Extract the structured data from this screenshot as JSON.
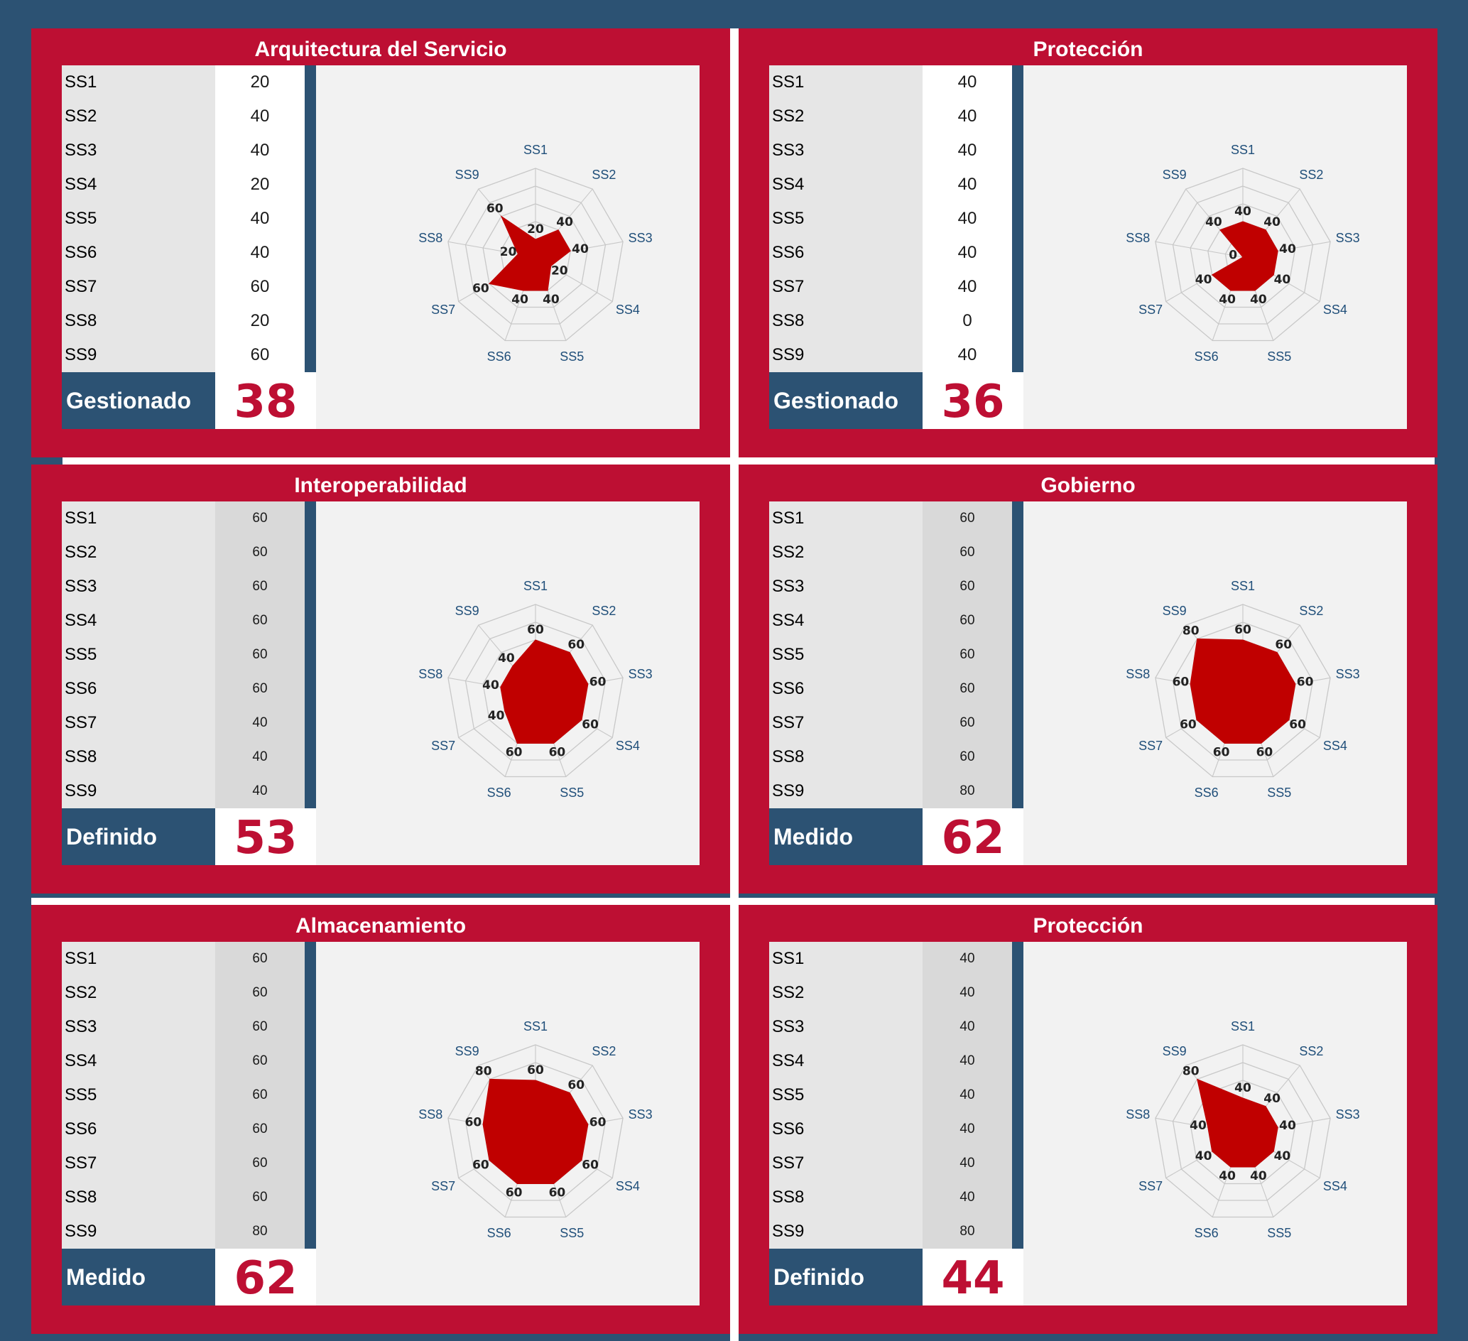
{
  "colors": {
    "background": "#2c5273",
    "panel": "#bd0f33",
    "radar_fill": "#c00000",
    "grid": "#c8c8c8",
    "axis_label": "#1f4e79",
    "score": "#bd0f33"
  },
  "panels": [
    {
      "title": "Arquitectura del Servicio",
      "rows": [
        {
          "label": "SS1",
          "value": "20"
        },
        {
          "label": "SS2",
          "value": "40"
        },
        {
          "label": "SS3",
          "value": "40"
        },
        {
          "label": "SS4",
          "value": "20"
        },
        {
          "label": "SS5",
          "value": "40"
        },
        {
          "label": "SS6",
          "value": "40"
        },
        {
          "label": "SS7",
          "value": "60"
        },
        {
          "label": "SS8",
          "value": "20"
        },
        {
          "label": "SS9",
          "value": "60"
        }
      ],
      "level": "Gestionado",
      "score": "38",
      "value_style": "white"
    },
    {
      "title": "Protección",
      "rows": [
        {
          "label": "SS1",
          "value": "40"
        },
        {
          "label": "SS2",
          "value": "40"
        },
        {
          "label": "SS3",
          "value": "40"
        },
        {
          "label": "SS4",
          "value": "40"
        },
        {
          "label": "SS5",
          "value": "40"
        },
        {
          "label": "SS6",
          "value": "40"
        },
        {
          "label": "SS7",
          "value": "40"
        },
        {
          "label": "SS8",
          "value": "0"
        },
        {
          "label": "SS9",
          "value": "40"
        }
      ],
      "level": "Gestionado",
      "score": "36",
      "value_style": "white"
    },
    {
      "title": "Interoperabilidad",
      "rows": [
        {
          "label": "SS1",
          "value": "60"
        },
        {
          "label": "SS2",
          "value": "60"
        },
        {
          "label": "SS3",
          "value": "60"
        },
        {
          "label": "SS4",
          "value": "60"
        },
        {
          "label": "SS5",
          "value": "60"
        },
        {
          "label": "SS6",
          "value": "60"
        },
        {
          "label": "SS7",
          "value": "40"
        },
        {
          "label": "SS8",
          "value": "40"
        },
        {
          "label": "SS9",
          "value": "40"
        }
      ],
      "level": "Definido",
      "score": "53",
      "value_style": "grey"
    },
    {
      "title": "Gobierno",
      "rows": [
        {
          "label": "SS1",
          "value": "60"
        },
        {
          "label": "SS2",
          "value": "60"
        },
        {
          "label": "SS3",
          "value": "60"
        },
        {
          "label": "SS4",
          "value": "60"
        },
        {
          "label": "SS5",
          "value": "60"
        },
        {
          "label": "SS6",
          "value": "60"
        },
        {
          "label": "SS7",
          "value": "60"
        },
        {
          "label": "SS8",
          "value": "60"
        },
        {
          "label": "SS9",
          "value": "80"
        }
      ],
      "level": "Medido",
      "score": "62",
      "value_style": "grey"
    },
    {
      "title": "Almacenamiento",
      "rows": [
        {
          "label": "SS1",
          "value": "60"
        },
        {
          "label": "SS2",
          "value": "60"
        },
        {
          "label": "SS3",
          "value": "60"
        },
        {
          "label": "SS4",
          "value": "60"
        },
        {
          "label": "SS5",
          "value": "60"
        },
        {
          "label": "SS6",
          "value": "60"
        },
        {
          "label": "SS7",
          "value": "60"
        },
        {
          "label": "SS8",
          "value": "60"
        },
        {
          "label": "SS9",
          "value": "80"
        }
      ],
      "level": "Medido",
      "score": "62",
      "value_style": "grey"
    },
    {
      "title": "Protección",
      "rows": [
        {
          "label": "SS1",
          "value": "40"
        },
        {
          "label": "SS2",
          "value": "40"
        },
        {
          "label": "SS3",
          "value": "40"
        },
        {
          "label": "SS4",
          "value": "40"
        },
        {
          "label": "SS5",
          "value": "40"
        },
        {
          "label": "SS6",
          "value": "40"
        },
        {
          "label": "SS7",
          "value": "40"
        },
        {
          "label": "SS8",
          "value": "40"
        },
        {
          "label": "SS9",
          "value": "80"
        }
      ],
      "level": "Definido",
      "score": "44",
      "value_style": "grey"
    }
  ],
  "chart_data": [
    {
      "type": "radar",
      "categories": [
        "SS1",
        "SS2",
        "SS3",
        "SS4",
        "SS5",
        "SS6",
        "SS7",
        "SS8",
        "SS9"
      ],
      "values": [
        20,
        40,
        40,
        20,
        40,
        40,
        60,
        20,
        60
      ],
      "rmax": 100,
      "rings": 5,
      "grid": true,
      "legend": "none"
    },
    {
      "type": "radar",
      "categories": [
        "SS1",
        "SS2",
        "SS3",
        "SS4",
        "SS5",
        "SS6",
        "SS7",
        "SS8",
        "SS9"
      ],
      "values": [
        40,
        40,
        40,
        40,
        40,
        40,
        40,
        0,
        40
      ],
      "rmax": 100,
      "rings": 5,
      "grid": true,
      "legend": "none"
    },
    {
      "type": "radar",
      "categories": [
        "SS1",
        "SS2",
        "SS3",
        "SS4",
        "SS5",
        "SS6",
        "SS7",
        "SS8",
        "SS9"
      ],
      "values": [
        60,
        60,
        60,
        60,
        60,
        60,
        40,
        40,
        40
      ],
      "rmax": 100,
      "rings": 5,
      "grid": true,
      "legend": "none"
    },
    {
      "type": "radar",
      "categories": [
        "SS1",
        "SS2",
        "SS3",
        "SS4",
        "SS5",
        "SS6",
        "SS7",
        "SS8",
        "SS9"
      ],
      "values": [
        60,
        60,
        60,
        60,
        60,
        60,
        60,
        60,
        80
      ],
      "rmax": 100,
      "rings": 5,
      "grid": true,
      "legend": "none"
    },
    {
      "type": "radar",
      "categories": [
        "SS1",
        "SS2",
        "SS3",
        "SS4",
        "SS5",
        "SS6",
        "SS7",
        "SS8",
        "SS9"
      ],
      "values": [
        60,
        60,
        60,
        60,
        60,
        60,
        60,
        60,
        80
      ],
      "rmax": 100,
      "rings": 5,
      "grid": true,
      "legend": "none"
    },
    {
      "type": "radar",
      "categories": [
        "SS1",
        "SS2",
        "SS3",
        "SS4",
        "SS5",
        "SS6",
        "SS7",
        "SS8",
        "SS9"
      ],
      "values": [
        40,
        40,
        40,
        40,
        40,
        40,
        40,
        40,
        80
      ],
      "rmax": 100,
      "rings": 5,
      "grid": true,
      "legend": "none"
    }
  ]
}
